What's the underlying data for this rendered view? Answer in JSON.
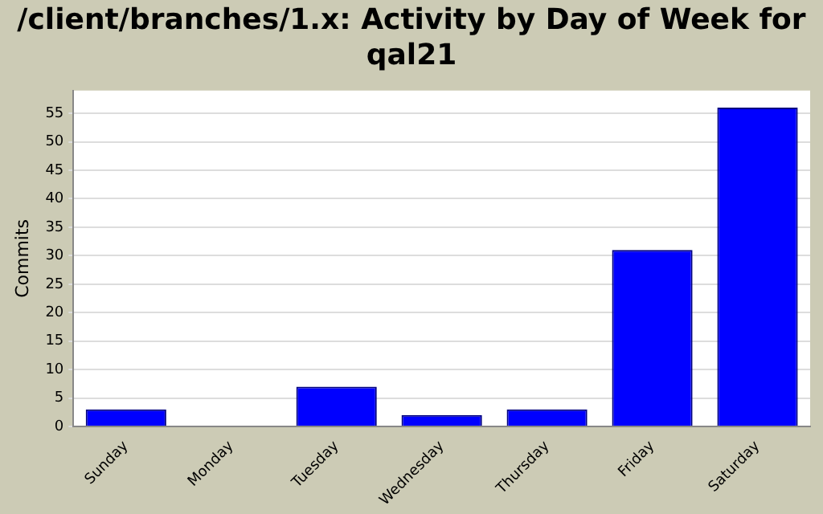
{
  "chart_data": {
    "type": "bar",
    "title": "/client/branches/1.x: Activity by Day of Week for qal21",
    "ylabel": "Commits",
    "categories": [
      "Sunday",
      "Monday",
      "Tuesday",
      "Wednesday",
      "Thursday",
      "Friday",
      "Saturday"
    ],
    "values": [
      3,
      0,
      7,
      2,
      3,
      31,
      56
    ],
    "color": "#0000ff",
    "ylim": [
      0,
      59
    ],
    "yticks": [
      0,
      5,
      10,
      15,
      20,
      25,
      30,
      35,
      40,
      45,
      50,
      55
    ],
    "grid": "y",
    "legend": false
  }
}
